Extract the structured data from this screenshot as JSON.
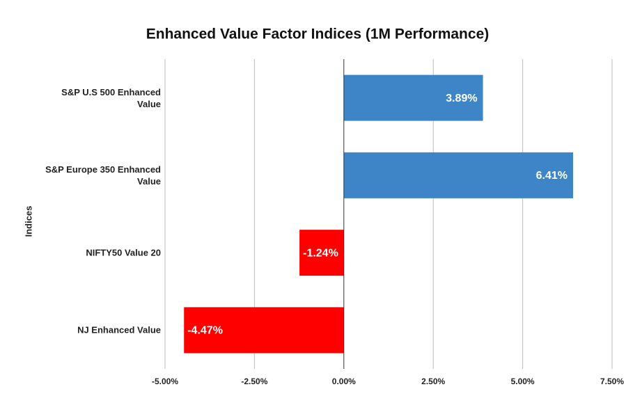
{
  "chart_data": {
    "type": "hbar",
    "title": "Enhanced Value Factor Indices (1M Performance)",
    "y_label": "Indices",
    "categories": [
      "S&P U.S 500 Enhanced Value",
      "S&P Europe 350 Enhanced Value",
      "NIFTY50 Value 20",
      "NJ Enhanced Value"
    ],
    "values": [
      3.89,
      6.41,
      -1.24,
      -4.47
    ],
    "value_labels": [
      "3.89%",
      "6.41%",
      "-1.24%",
      "-4.47%"
    ],
    "colors": [
      "#3d85c6",
      "#3d85c6",
      "#ff0000",
      "#ff0000"
    ],
    "xlim": [
      -5,
      7.5
    ],
    "xticks": [
      {
        "value": -5,
        "label": "-5.00%"
      },
      {
        "value": -2.5,
        "label": "-2.50%"
      },
      {
        "value": 0,
        "label": "0.00%"
      },
      {
        "value": 2.5,
        "label": "2.50%"
      },
      {
        "value": 5,
        "label": "5.00%"
      },
      {
        "value": 7.5,
        "label": "7.50%"
      }
    ],
    "grid": true
  }
}
